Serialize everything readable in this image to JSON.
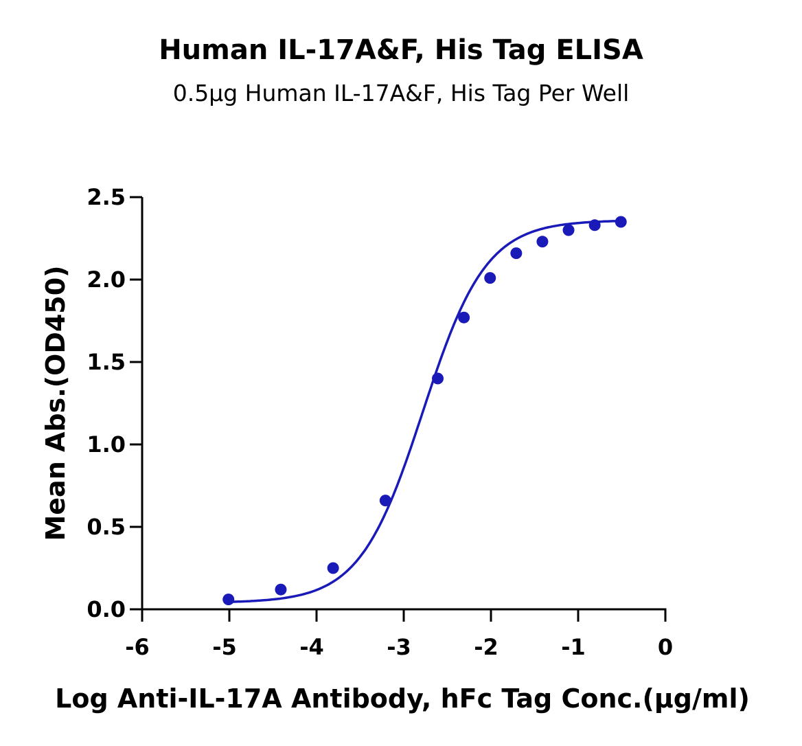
{
  "chart_data": {
    "type": "scatter",
    "title": "Human IL-17A&F, His Tag ELISA",
    "subtitle": "0.5μg Human IL-17A&F, His Tag Per Well",
    "xlabel": "Log Anti-IL-17A Antibody, hFc Tag Conc.(μg/ml)",
    "ylabel": "Mean Abs.(OD450)",
    "xlim": [
      -6,
      0
    ],
    "ylim": [
      0,
      2.5
    ],
    "x_ticks": [
      -6,
      -5,
      -4,
      -3,
      -2,
      -1,
      0
    ],
    "x_tick_labels": [
      "-6",
      "-5",
      "-4",
      "-3",
      "-2",
      "-1",
      "0"
    ],
    "y_ticks": [
      0,
      0.5,
      1.0,
      1.5,
      2.0,
      2.5
    ],
    "y_tick_labels": [
      "0.0",
      "0.5",
      "1.0",
      "1.5",
      "2.0",
      "2.5"
    ],
    "grid": false,
    "color": "#1a1ab8",
    "series": [
      {
        "x": [
          -5.01,
          -4.41,
          -3.81,
          -3.21,
          -2.61,
          -2.31,
          -2.01,
          -1.71,
          -1.41,
          -1.11,
          -0.81,
          -0.51
        ],
        "y": [
          0.06,
          0.12,
          0.25,
          0.66,
          1.4,
          1.77,
          2.01,
          2.16,
          2.23,
          2.3,
          2.33,
          2.35
        ],
        "fit": "sigmoidal"
      }
    ]
  }
}
